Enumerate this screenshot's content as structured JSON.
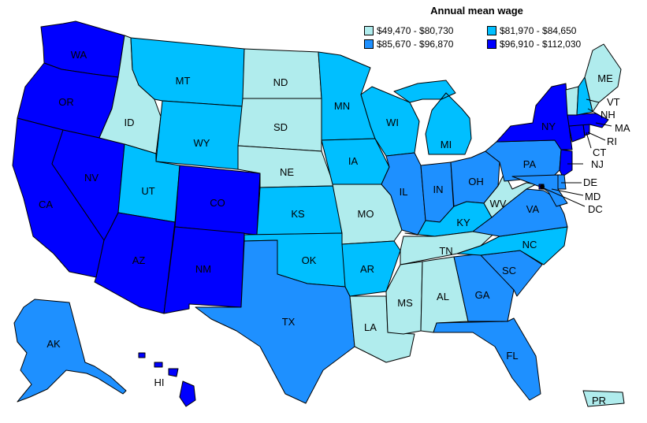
{
  "title": "Annual mean wage",
  "legend": [
    {
      "label": "$49,470 - $80,730",
      "color": "#b0eced"
    },
    {
      "label": "$81,970 - $84,650",
      "color": "#00bfff"
    },
    {
      "label": "$85,670 - $96,870",
      "color": "#1e90ff"
    },
    {
      "label": "$96,910 - $112,030",
      "color": "#0000ff"
    }
  ],
  "states": {
    "WA": {
      "label": "WA",
      "bin": 3
    },
    "OR": {
      "label": "OR",
      "bin": 3
    },
    "CA": {
      "label": "CA",
      "bin": 3
    },
    "NV": {
      "label": "NV",
      "bin": 3
    },
    "ID": {
      "label": "ID",
      "bin": 0
    },
    "MT": {
      "label": "MT",
      "bin": 1
    },
    "WY": {
      "label": "WY",
      "bin": 1
    },
    "UT": {
      "label": "UT",
      "bin": 1
    },
    "AZ": {
      "label": "AZ",
      "bin": 3
    },
    "CO": {
      "label": "CO",
      "bin": 3
    },
    "NM": {
      "label": "NM",
      "bin": 3
    },
    "ND": {
      "label": "ND",
      "bin": 0
    },
    "SD": {
      "label": "SD",
      "bin": 0
    },
    "NE": {
      "label": "NE",
      "bin": 0
    },
    "KS": {
      "label": "KS",
      "bin": 1
    },
    "OK": {
      "label": "OK",
      "bin": 1
    },
    "TX": {
      "label": "TX",
      "bin": 2
    },
    "MN": {
      "label": "MN",
      "bin": 1
    },
    "IA": {
      "label": "IA",
      "bin": 1
    },
    "MO": {
      "label": "MO",
      "bin": 0
    },
    "AR": {
      "label": "AR",
      "bin": 1
    },
    "LA": {
      "label": "LA",
      "bin": 0
    },
    "WI": {
      "label": "WI",
      "bin": 1
    },
    "IL": {
      "label": "IL",
      "bin": 2
    },
    "MI": {
      "label": "MI",
      "bin": 1
    },
    "IN": {
      "label": "IN",
      "bin": 2
    },
    "OH": {
      "label": "OH",
      "bin": 2
    },
    "KY": {
      "label": "KY",
      "bin": 1
    },
    "TN": {
      "label": "TN",
      "bin": 0
    },
    "MS": {
      "label": "MS",
      "bin": 0
    },
    "AL": {
      "label": "AL",
      "bin": 0
    },
    "GA": {
      "label": "GA",
      "bin": 2
    },
    "FL": {
      "label": "FL",
      "bin": 2
    },
    "SC": {
      "label": "SC",
      "bin": 2
    },
    "NC": {
      "label": "NC",
      "bin": 1
    },
    "VA": {
      "label": "VA",
      "bin": 2
    },
    "WV": {
      "label": "WV",
      "bin": 0
    },
    "PA": {
      "label": "PA",
      "bin": 2
    },
    "NY": {
      "label": "NY",
      "bin": 3
    },
    "NJ": {
      "label": "NJ",
      "bin": 3
    },
    "DE": {
      "label": "DE",
      "bin": 2
    },
    "MD": {
      "label": "MD",
      "bin": 2
    },
    "DC": {
      "label": "DC",
      "bin": 3
    },
    "CT": {
      "label": "CT",
      "bin": 3
    },
    "RI": {
      "label": "RI",
      "bin": 3
    },
    "MA": {
      "label": "MA",
      "bin": 3
    },
    "VT": {
      "label": "VT",
      "bin": 0
    },
    "NH": {
      "label": "NH",
      "bin": 1
    },
    "ME": {
      "label": "ME",
      "bin": 0
    },
    "AK": {
      "label": "AK",
      "bin": 2
    },
    "HI": {
      "label": "HI",
      "bin": 3
    },
    "PR": {
      "label": "PR",
      "bin": 0
    }
  }
}
